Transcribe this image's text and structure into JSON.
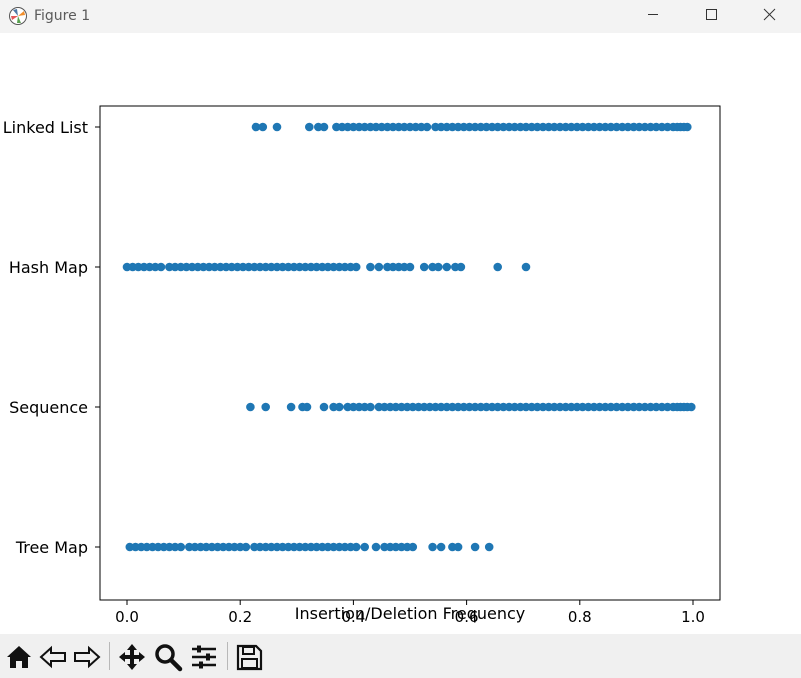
{
  "window": {
    "title": "Figure 1"
  },
  "toolbar": {
    "buttons": [
      "home-icon",
      "back-icon",
      "forward-icon",
      "pan-icon",
      "zoom-icon",
      "configure-icon",
      "save-icon"
    ]
  },
  "chart_data": {
    "type": "scatter",
    "xlabel": "Insertion/Deletion Frequency",
    "ylabel": "",
    "xlim": [
      -0.05,
      1.05
    ],
    "x_ticks": [
      "0.0",
      "0.2",
      "0.4",
      "0.6",
      "0.8",
      "1.0"
    ],
    "x_tick_values": [
      0.0,
      0.2,
      0.4,
      0.6,
      0.8,
      1.0
    ],
    "categories": [
      "Tree Map",
      "Sequence",
      "Hash Map",
      "Linked List"
    ],
    "marker_color": "#1f77b4",
    "grid": false,
    "series": [
      {
        "category": "Linked List",
        "x": [
          0.228,
          0.24,
          0.265,
          0.322,
          0.338,
          0.348,
          0.37,
          0.38,
          0.39,
          0.4,
          0.41,
          0.42,
          0.43,
          0.44,
          0.45,
          0.46,
          0.47,
          0.48,
          0.49,
          0.5,
          0.51,
          0.52,
          0.53,
          0.545,
          0.555,
          0.565,
          0.575,
          0.585,
          0.595,
          0.605,
          0.615,
          0.625,
          0.635,
          0.645,
          0.655,
          0.665,
          0.675,
          0.685,
          0.695,
          0.705,
          0.715,
          0.725,
          0.735,
          0.745,
          0.755,
          0.765,
          0.775,
          0.785,
          0.795,
          0.805,
          0.815,
          0.825,
          0.835,
          0.845,
          0.855,
          0.865,
          0.875,
          0.885,
          0.895,
          0.905,
          0.915,
          0.925,
          0.935,
          0.945,
          0.955,
          0.965,
          0.972,
          0.978,
          0.984,
          0.99
        ]
      },
      {
        "category": "Hash Map",
        "x": [
          0.0,
          0.01,
          0.02,
          0.03,
          0.04,
          0.05,
          0.06,
          0.075,
          0.085,
          0.095,
          0.105,
          0.115,
          0.125,
          0.135,
          0.145,
          0.155,
          0.165,
          0.175,
          0.185,
          0.195,
          0.205,
          0.215,
          0.225,
          0.235,
          0.245,
          0.255,
          0.265,
          0.275,
          0.285,
          0.295,
          0.305,
          0.315,
          0.325,
          0.335,
          0.345,
          0.355,
          0.365,
          0.375,
          0.385,
          0.395,
          0.405,
          0.43,
          0.445,
          0.46,
          0.47,
          0.48,
          0.49,
          0.5,
          0.525,
          0.54,
          0.55,
          0.565,
          0.58,
          0.59,
          0.655,
          0.705
        ]
      },
      {
        "category": "Sequence",
        "x": [
          0.218,
          0.245,
          0.29,
          0.31,
          0.318,
          0.348,
          0.365,
          0.375,
          0.39,
          0.4,
          0.41,
          0.42,
          0.43,
          0.445,
          0.455,
          0.465,
          0.475,
          0.485,
          0.495,
          0.505,
          0.515,
          0.525,
          0.535,
          0.545,
          0.555,
          0.565,
          0.575,
          0.585,
          0.595,
          0.605,
          0.615,
          0.625,
          0.635,
          0.645,
          0.655,
          0.665,
          0.675,
          0.685,
          0.695,
          0.705,
          0.715,
          0.725,
          0.735,
          0.745,
          0.755,
          0.765,
          0.775,
          0.785,
          0.795,
          0.805,
          0.815,
          0.825,
          0.835,
          0.845,
          0.855,
          0.865,
          0.875,
          0.885,
          0.895,
          0.905,
          0.915,
          0.925,
          0.935,
          0.945,
          0.955,
          0.965,
          0.972,
          0.978,
          0.984,
          0.99,
          0.997
        ]
      },
      {
        "category": "Tree Map",
        "x": [
          0.005,
          0.015,
          0.025,
          0.035,
          0.045,
          0.055,
          0.065,
          0.075,
          0.085,
          0.095,
          0.11,
          0.12,
          0.13,
          0.14,
          0.15,
          0.16,
          0.17,
          0.18,
          0.19,
          0.2,
          0.21,
          0.225,
          0.235,
          0.245,
          0.255,
          0.265,
          0.275,
          0.285,
          0.295,
          0.305,
          0.315,
          0.325,
          0.335,
          0.345,
          0.355,
          0.365,
          0.375,
          0.385,
          0.395,
          0.405,
          0.42,
          0.44,
          0.455,
          0.465,
          0.475,
          0.485,
          0.495,
          0.505,
          0.54,
          0.555,
          0.575,
          0.585,
          0.615,
          0.64
        ]
      }
    ]
  }
}
